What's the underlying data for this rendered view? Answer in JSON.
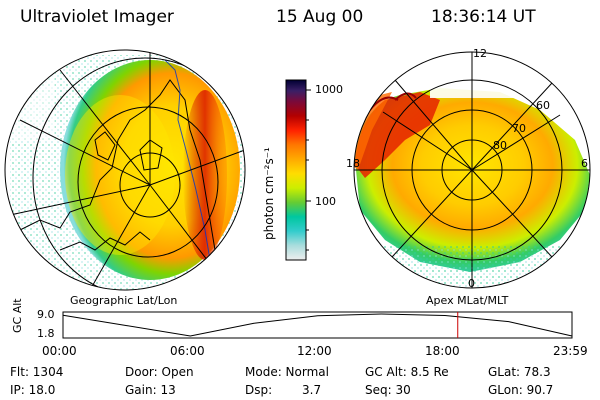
{
  "header": {
    "instrument": "Ultraviolet Imager",
    "date": "15 Aug 00",
    "time": "18:36:14 UT"
  },
  "colorbar": {
    "unit_label": "photon cm⁻²s⁻¹",
    "ticks": [
      "1000",
      "100"
    ],
    "colors": [
      "#000033",
      "#2a1a5a",
      "#5a0f3f",
      "#8b0000",
      "#cc0000",
      "#ff2a00",
      "#ff6a00",
      "#ff9900",
      "#ffc000",
      "#ffe600",
      "#ccee00",
      "#7fd400",
      "#33cc33",
      "#00c7a0",
      "#33cccc",
      "#88dddd",
      "#cceeee",
      "#eeeeee"
    ]
  },
  "left_panel": {
    "caption": "Geographic Lat/Lon"
  },
  "right_panel": {
    "caption": "Apex MLat/MLT",
    "mlt_labels": {
      "top": "12",
      "left": "18",
      "right": "6",
      "bottom": "0"
    },
    "lat_labels": [
      "60",
      "70",
      "80"
    ]
  },
  "chart_data": {
    "type": "line",
    "title": "",
    "ylabel": "GC Alt",
    "yticks": [
      "9.0",
      "1.8"
    ],
    "ylim": [
      1.8,
      9.0
    ],
    "xticks": [
      "00:00",
      "06:00",
      "12:00",
      "18:00",
      "23:59"
    ],
    "x": [
      "00:00",
      "03:00",
      "06:00",
      "09:00",
      "12:00",
      "15:00",
      "18:00",
      "21:00",
      "23:59"
    ],
    "values": [
      8.6,
      5.2,
      1.8,
      6.0,
      8.4,
      9.0,
      8.5,
      6.5,
      1.8
    ],
    "marker_time": "18:36",
    "marker_color": "#cc0000"
  },
  "info": {
    "flt": "Flt: 1304",
    "ip": "IP: 18.0",
    "door": "Door: Open",
    "gain": "Gain: 13",
    "mode": "Mode: Normal",
    "dsp_label": "Dsp:",
    "dsp_value": "3.7",
    "gcalt": "GC Alt: 8.5 Re",
    "seq": "Seq: 30",
    "glat": "GLat: 78.3",
    "glon": "GLon: 90.7"
  }
}
